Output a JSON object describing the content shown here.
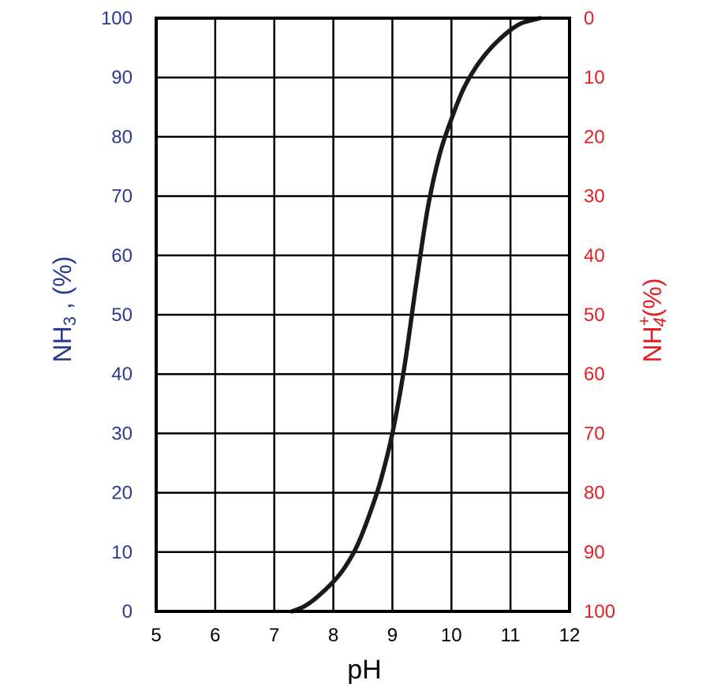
{
  "chart_data": {
    "type": "line",
    "xlabel": "pH",
    "ylabel_left": {
      "main": "NH",
      "sub": "3",
      "suffix": " , (%)"
    },
    "ylabel_right": {
      "main": "NH",
      "sub": "4",
      "sup": "+",
      "suffix": "(%)"
    },
    "xlim": [
      5,
      12
    ],
    "ylim": [
      0,
      100
    ],
    "x_ticks": [
      "5",
      "6",
      "7",
      "8",
      "9",
      "10",
      "11",
      "12"
    ],
    "y_ticks_left": [
      "0",
      "10",
      "20",
      "30",
      "40",
      "50",
      "60",
      "70",
      "80",
      "90",
      "100"
    ],
    "y_ticks_right": [
      "100",
      "90",
      "80",
      "70",
      "60",
      "50",
      "40",
      "30",
      "20",
      "10",
      "0"
    ],
    "grid": true,
    "colors": {
      "left_axis": "#2b3990",
      "right_axis": "#e31e24",
      "curve": "#1a1a1a"
    },
    "series": [
      {
        "x": [
          7.3,
          7.5,
          7.7,
          8.0,
          8.2,
          8.4,
          8.6,
          8.8,
          9.0,
          9.2,
          9.4,
          9.6,
          9.8,
          10.0,
          10.2,
          10.4,
          10.6,
          10.8,
          11.0,
          11.2,
          11.5
        ],
        "y": [
          0,
          0.8,
          2.2,
          5,
          7.5,
          11,
          16,
          22,
          30,
          41,
          55,
          68,
          77,
          83,
          88,
          91.5,
          94.2,
          96.3,
          98,
          99.2,
          100
        ]
      }
    ]
  }
}
